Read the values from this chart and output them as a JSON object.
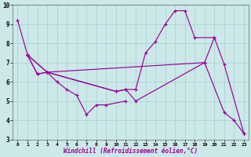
{
  "xlabel": "Windchill (Refroidissement éolien,°C)",
  "background_color": "#cce8e8",
  "line_color": "#990099",
  "xlim": [
    -0.5,
    23.5
  ],
  "ylim": [
    3,
    10
  ],
  "xticks": [
    0,
    1,
    2,
    3,
    4,
    5,
    6,
    7,
    8,
    9,
    10,
    11,
    12,
    13,
    14,
    15,
    16,
    17,
    18,
    19,
    20,
    21,
    22,
    23
  ],
  "yticks": [
    3,
    4,
    5,
    6,
    7,
    8,
    9,
    10
  ],
  "line1_x": [
    0,
    1,
    2,
    3,
    4,
    5,
    6,
    7,
    8,
    9,
    11
  ],
  "line1_y": [
    9.2,
    7.4,
    6.4,
    6.5,
    6.0,
    5.6,
    5.3,
    4.3,
    4.8,
    4.8,
    5.0
  ],
  "line2_x": [
    1,
    2,
    3,
    10,
    11,
    12,
    13,
    14,
    15,
    16,
    17,
    18,
    20
  ],
  "line2_y": [
    7.4,
    6.4,
    6.5,
    5.5,
    5.6,
    5.6,
    7.5,
    8.1,
    9.0,
    9.7,
    9.7,
    8.3,
    8.3
  ],
  "line3_x": [
    1,
    3,
    19,
    20,
    21,
    23
  ],
  "line3_y": [
    7.4,
    6.5,
    7.0,
    8.3,
    6.9,
    3.3
  ],
  "line4_x": [
    1,
    3,
    10,
    11,
    12,
    19,
    21,
    22,
    23
  ],
  "line4_y": [
    7.4,
    6.5,
    5.5,
    5.6,
    5.0,
    7.0,
    4.4,
    4.0,
    3.3
  ]
}
